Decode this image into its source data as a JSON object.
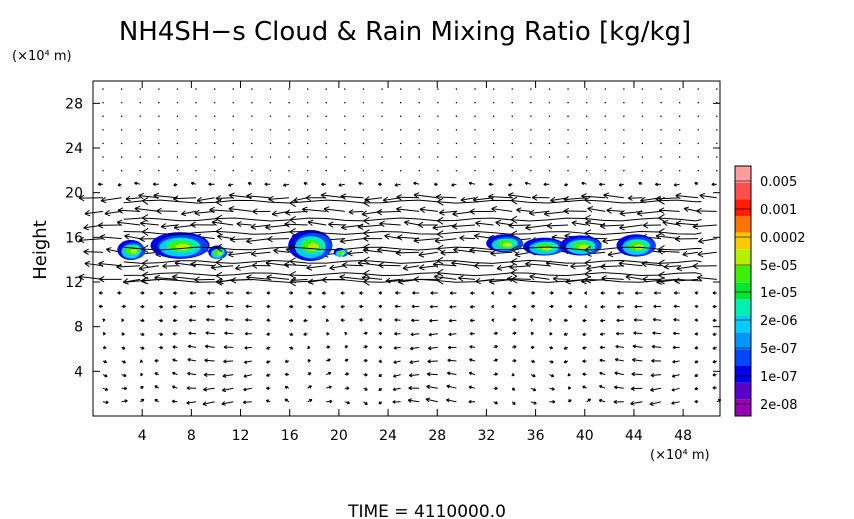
{
  "chart_data": {
    "type": "heatmap",
    "title": "NH4SH−s Cloud & Rain Mixing Ratio [kg/kg]",
    "ylabel": "Height",
    "y_unit_label": "(×10⁴ m)",
    "x_unit_label": "(×10⁴ m)",
    "footer": "TIME  =  4110000.0",
    "xlim": [
      0,
      51
    ],
    "ylim": [
      0,
      30
    ],
    "x_ticks": [
      4,
      8,
      12,
      16,
      20,
      24,
      28,
      32,
      36,
      40,
      44,
      48
    ],
    "y_ticks": [
      4,
      8,
      12,
      16,
      20,
      24,
      28
    ],
    "colorbar": {
      "labels": [
        "0.005",
        "0.001",
        "0.0002",
        "5e-05",
        "1e-05",
        "2e-06",
        "5e-07",
        "1e-07",
        "2e-08"
      ],
      "colors": [
        "#ff9d9d",
        "#ff5050",
        "#ff1e00",
        "#ff7300",
        "#ffc800",
        "#b4f000",
        "#3cf000",
        "#00e632",
        "#00f0b4",
        "#00cdff",
        "#0096ff",
        "#0046ff",
        "#0000e6",
        "#5a00c8",
        "#9600b4"
      ]
    },
    "cloud_patches": [
      {
        "x": 3.2,
        "y": 14.8,
        "rx": 1.1,
        "ry": 0.9
      },
      {
        "x": 7.2,
        "y": 15.2,
        "rx": 2.4,
        "ry": 1.2
      },
      {
        "x": 10.2,
        "y": 14.6,
        "rx": 0.7,
        "ry": 0.6
      },
      {
        "x": 17.8,
        "y": 15.2,
        "rx": 1.8,
        "ry": 1.4
      },
      {
        "x": 20.2,
        "y": 14.6,
        "rx": 0.5,
        "ry": 0.4
      },
      {
        "x": 33.6,
        "y": 15.4,
        "rx": 1.5,
        "ry": 0.8
      },
      {
        "x": 36.8,
        "y": 15.1,
        "rx": 1.7,
        "ry": 0.8
      },
      {
        "x": 39.8,
        "y": 15.2,
        "rx": 1.7,
        "ry": 0.9
      },
      {
        "x": 44.3,
        "y": 15.2,
        "rx": 1.6,
        "ry": 1.0
      }
    ]
  }
}
